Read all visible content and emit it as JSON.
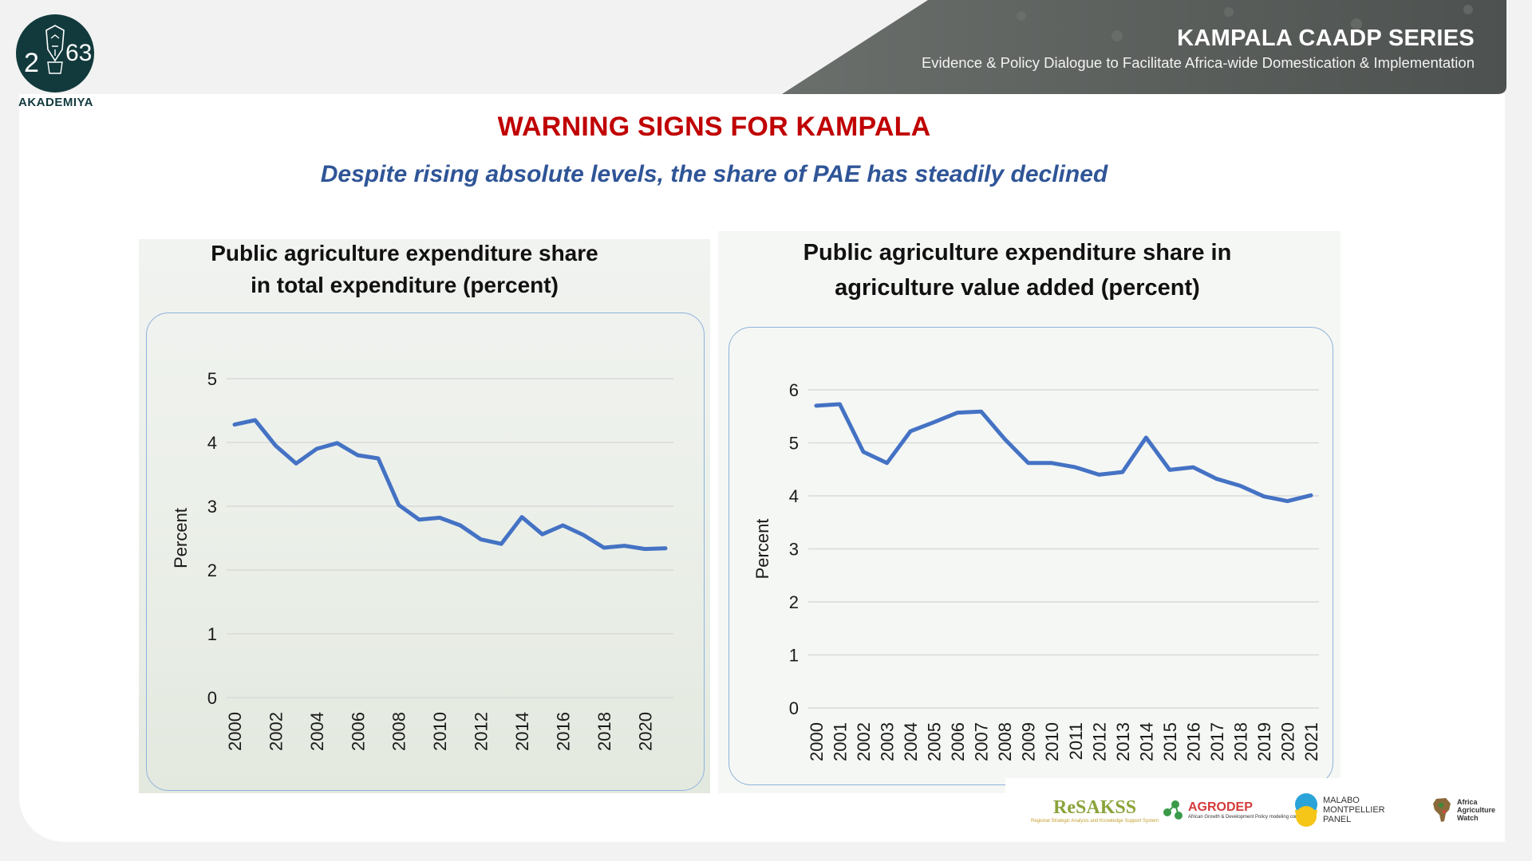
{
  "header": {
    "logo_numerals": "2063",
    "logo_word": "AKADEMIYA",
    "series_title": "KAMPALA CAADP SERIES",
    "series_subtitle": "Evidence & Policy Dialogue to Facilitate Africa-wide Domestication & Implementation"
  },
  "slide": {
    "title": "WARNING SIGNS FOR KAMPALA",
    "subtitle": "Despite rising absolute levels, the share of PAE has steadily declined",
    "title_color": "#c00000",
    "subtitle_color": "#2f5597"
  },
  "chart_data": [
    {
      "type": "line",
      "title_line1": "Public agriculture expenditure share",
      "title_line2": "in total expenditure (percent)",
      "ylabel": "Percent",
      "xlabel": "",
      "ylim": [
        0,
        5
      ],
      "yticks": [
        "0",
        "1",
        "2",
        "3",
        "4",
        "5"
      ],
      "x": [
        "2000",
        "2001",
        "2002",
        "2003",
        "2004",
        "2005",
        "2006",
        "2007",
        "2008",
        "2009",
        "2010",
        "2011",
        "2012",
        "2013",
        "2014",
        "2015",
        "2016",
        "2017",
        "2018",
        "2019",
        "2020",
        "2021"
      ],
      "xtick_labels": [
        "2000",
        "2002",
        "2004",
        "2006",
        "2008",
        "2010",
        "2012",
        "2014",
        "2016",
        "2018",
        "2020"
      ],
      "series": [
        {
          "name": "Public agriculture expenditure share in total expenditure",
          "color": "#4472c4",
          "values": [
            4.28,
            4.35,
            3.95,
            3.67,
            3.9,
            3.99,
            3.8,
            3.75,
            3.02,
            2.79,
            2.82,
            2.7,
            2.48,
            2.41,
            2.83,
            2.56,
            2.7,
            2.55,
            2.35,
            2.38,
            2.33,
            2.34
          ]
        }
      ],
      "grid": true,
      "legend": "none"
    },
    {
      "type": "line",
      "title_line1": "Public agriculture expenditure share in",
      "title_line2": "agriculture value added (percent)",
      "ylabel": "Percent",
      "xlabel": "",
      "ylim": [
        0,
        6
      ],
      "yticks": [
        "0",
        "1",
        "2",
        "3",
        "4",
        "5",
        "6"
      ],
      "x": [
        "2000",
        "2001",
        "2002",
        "2003",
        "2004",
        "2005",
        "2006",
        "2007",
        "2008",
        "2009",
        "2010",
        "2011",
        "2012",
        "2013",
        "2014",
        "2015",
        "2016",
        "2017",
        "2018",
        "2019",
        "2020",
        "2021"
      ],
      "xtick_labels": [
        "2000",
        "2001",
        "2002",
        "2003",
        "2004",
        "2005",
        "2006",
        "2007",
        "2008",
        "2009",
        "2010",
        "2011",
        "2012",
        "2013",
        "2014",
        "2015",
        "2016",
        "2017",
        "2018",
        "2019",
        "2020",
        "2021"
      ],
      "series": [
        {
          "name": "Public agriculture expenditure share in agriculture value added",
          "color": "#4472c4",
          "values": [
            5.7,
            5.73,
            4.83,
            4.62,
            5.22,
            5.39,
            5.57,
            5.59,
            5.07,
            4.62,
            4.62,
            4.54,
            4.4,
            4.45,
            5.1,
            4.49,
            4.54,
            4.32,
            4.19,
            3.99,
            3.9,
            4.01
          ]
        }
      ],
      "grid": true,
      "legend": "none"
    }
  ],
  "partners": {
    "resakss_name": "ReSAKSS",
    "resakss_tag": "Regional Strategic Analysis and Knowledge Support System",
    "agrodep_name": "AGRODEP",
    "agrodep_tag": "African Growth & Development Policy modeling consortium",
    "malabo_line1": "MALABO",
    "malabo_line2": "MONTPELLIER",
    "malabo_line3": "PANEL",
    "aaw_line1": "Africa",
    "aaw_line2": "Agriculture",
    "aaw_line3": "Watch"
  },
  "colors": {
    "line": "#4472c4",
    "grid": "#d9d9d9",
    "frame": "#8fb2dc",
    "banner": "#555a57",
    "logo_bg": "#123a3d"
  }
}
